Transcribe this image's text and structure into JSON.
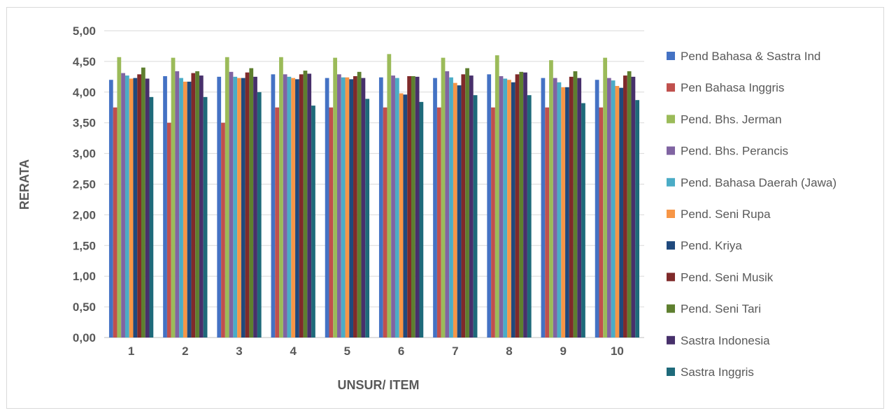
{
  "chart_data": {
    "type": "bar",
    "title": "",
    "xlabel": "UNSUR/ ITEM",
    "ylabel": "RERATA",
    "ylim": [
      0,
      5
    ],
    "yticks": [
      "0,00",
      "0,50",
      "1,00",
      "1,50",
      "2,00",
      "2,50",
      "3,00",
      "3,50",
      "4,00",
      "4,50",
      "5,00"
    ],
    "categories": [
      "1",
      "2",
      "3",
      "4",
      "5",
      "6",
      "7",
      "8",
      "9",
      "10"
    ],
    "grid": true,
    "legend_position": "right",
    "series": [
      {
        "name": "Pend Bahasa & Sastra Ind",
        "color": "#4472C4",
        "values": [
          4.2,
          4.26,
          4.25,
          4.29,
          4.23,
          4.24,
          4.23,
          4.29,
          4.23,
          4.2
        ]
      },
      {
        "name": "Pen Bahasa Inggris",
        "color": "#C0504D",
        "values": [
          3.75,
          3.5,
          3.5,
          3.75,
          3.75,
          3.75,
          3.75,
          3.75,
          3.75,
          3.75
        ]
      },
      {
        "name": "Pend. Bhs. Jerman",
        "color": "#9BBB59",
        "values": [
          4.57,
          4.56,
          4.57,
          4.57,
          4.56,
          4.62,
          4.56,
          4.6,
          4.52,
          4.56
        ]
      },
      {
        "name": "Pend. Bhs. Perancis",
        "color": "#8064A2",
        "values": [
          4.31,
          4.34,
          4.33,
          4.29,
          4.29,
          4.27,
          4.34,
          4.26,
          4.23,
          4.23
        ]
      },
      {
        "name": "Pend. Bahasa Daerah (Jawa)",
        "color": "#4BACC6",
        "values": [
          4.27,
          4.23,
          4.25,
          4.25,
          4.24,
          4.23,
          4.24,
          4.22,
          4.16,
          4.19
        ]
      },
      {
        "name": "Pend. Seni Rupa",
        "color": "#F79646",
        "values": [
          4.22,
          4.17,
          4.23,
          4.23,
          4.24,
          3.98,
          4.15,
          4.2,
          4.08,
          4.1
        ]
      },
      {
        "name": "Pend. Kriya",
        "color": "#1F497D",
        "values": [
          4.23,
          4.17,
          4.23,
          4.21,
          4.21,
          3.96,
          4.11,
          4.16,
          4.08,
          4.07
        ]
      },
      {
        "name": "Pend. Seni Musik",
        "color": "#7F2A2A",
        "values": [
          4.29,
          4.31,
          4.32,
          4.29,
          4.26,
          4.26,
          4.29,
          4.29,
          4.25,
          4.27
        ]
      },
      {
        "name": "Pend. Seni Tari",
        "color": "#5E7F2F",
        "values": [
          4.4,
          4.34,
          4.39,
          4.35,
          4.33,
          4.26,
          4.39,
          4.33,
          4.34,
          4.34
        ]
      },
      {
        "name": "Sastra Indonesia",
        "color": "#47306B",
        "values": [
          4.22,
          4.27,
          4.25,
          4.3,
          4.23,
          4.25,
          4.27,
          4.32,
          4.23,
          4.25
        ]
      },
      {
        "name": "Sastra Inggris",
        "color": "#1E6A7A",
        "values": [
          3.92,
          3.92,
          4.0,
          3.78,
          3.89,
          3.84,
          3.95,
          3.95,
          3.82,
          3.87
        ]
      }
    ]
  }
}
